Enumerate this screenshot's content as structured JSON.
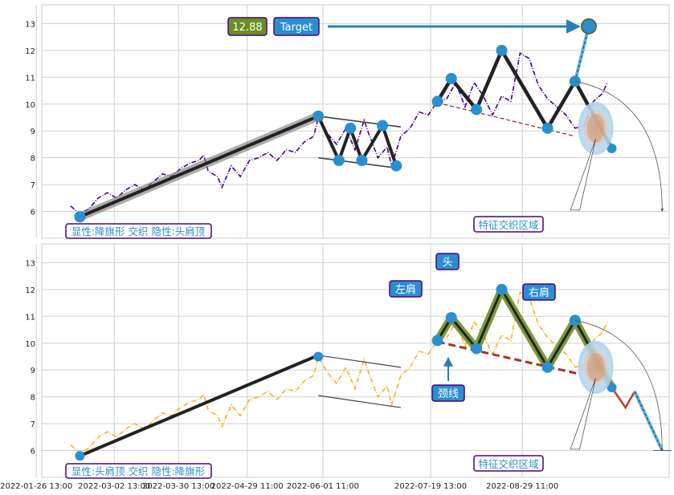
{
  "chart_data": [
    {
      "panel": "top",
      "type": "line",
      "xaxis_dates": [
        "2022-01-26 13:00",
        "2022-03-02 13:00",
        "2022-03-30 13:00",
        "2022-04-29 11:00",
        "2022-06-01 11:00",
        "2022-07-19 13:00",
        "2022-08-29 11:00"
      ],
      "ylim": [
        5,
        13.7
      ],
      "yticks": [
        6,
        7,
        8,
        9,
        10,
        11,
        12,
        13
      ],
      "grid": true,
      "series_color": "#4b0082",
      "price": [
        [
          0,
          6.2
        ],
        [
          4,
          5.9
        ],
        [
          8,
          6.1
        ],
        [
          12,
          6.5
        ],
        [
          16,
          6.7
        ],
        [
          20,
          6.5
        ],
        [
          24,
          6.8
        ],
        [
          28,
          7.0
        ],
        [
          32,
          6.8
        ],
        [
          36,
          7.1
        ],
        [
          40,
          7.4
        ],
        [
          44,
          7.3
        ],
        [
          48,
          7.6
        ],
        [
          52,
          7.8
        ],
        [
          56,
          7.9
        ],
        [
          58,
          8.1
        ],
        [
          60,
          7.5
        ],
        [
          64,
          7.3
        ],
        [
          66,
          6.9
        ],
        [
          70,
          7.7
        ],
        [
          74,
          7.3
        ],
        [
          78,
          7.9
        ],
        [
          82,
          8.0
        ],
        [
          86,
          8.2
        ],
        [
          90,
          7.9
        ],
        [
          94,
          8.3
        ],
        [
          98,
          8.2
        ],
        [
          102,
          8.6
        ],
        [
          106,
          8.8
        ],
        [
          108,
          9.5
        ],
        [
          112,
          8.9
        ],
        [
          116,
          8.5
        ],
        [
          120,
          9.1
        ],
        [
          124,
          8.3
        ],
        [
          128,
          9.4
        ],
        [
          130,
          8.9
        ],
        [
          134,
          8.0
        ],
        [
          138,
          8.4
        ],
        [
          140,
          7.7
        ],
        [
          144,
          8.8
        ],
        [
          148,
          9.1
        ],
        [
          152,
          9.7
        ],
        [
          156,
          9.6
        ],
        [
          160,
          10.1
        ],
        [
          164,
          10.2
        ],
        [
          168,
          10.8
        ],
        [
          172,
          9.9
        ],
        [
          176,
          10.8
        ],
        [
          180,
          10.3
        ],
        [
          184,
          9.6
        ],
        [
          188,
          10.3
        ],
        [
          192,
          10.1
        ],
        [
          196,
          11.9
        ],
        [
          200,
          11.7
        ],
        [
          204,
          10.7
        ],
        [
          208,
          10.2
        ],
        [
          212,
          9.9
        ],
        [
          216,
          9.6
        ],
        [
          220,
          9.1
        ],
        [
          224,
          9.2
        ],
        [
          228,
          10.1
        ],
        [
          232,
          10.4
        ],
        [
          234,
          10.8
        ]
      ],
      "patterns": [
        {
          "name": "降旗形",
          "points": [
            [
              4,
              5.8
            ],
            [
              108,
              9.55
            ]
          ],
          "upper": [
            [
              108,
              9.55
            ],
            [
              144,
              9.15
            ]
          ],
          "lower": [
            [
              108,
              8.0
            ],
            [
              144,
              7.6
            ]
          ]
        },
        {
          "name": "zigzag",
          "points": [
            [
              108,
              9.55
            ],
            [
              117,
              7.9
            ],
            [
              122,
              9.1
            ],
            [
              127,
              7.9
            ],
            [
              136,
              9.2
            ],
            [
              142,
              7.7
            ]
          ]
        },
        {
          "name": "头肩顶",
          "points": [
            [
              160,
              10.1
            ],
            [
              166,
              10.95
            ],
            [
              177,
              9.8
            ],
            [
              188,
              12.0
            ],
            [
              208,
              9.1
            ],
            [
              220,
              10.85
            ],
            [
              236,
              8.35
            ]
          ]
        }
      ],
      "neckline": [
        [
          160,
          10.05
        ],
        [
          220,
          8.8
        ]
      ],
      "target_value": 12.88,
      "target_point": [
        226,
        12.9
      ],
      "zone_label": "特征交织区域",
      "labels": {
        "bottom_left": "显性:降旗形 交织 隐性:头肩顶",
        "target_value_label": "12.88",
        "target_label": "Target"
      }
    },
    {
      "panel": "bottom",
      "type": "line",
      "xaxis_dates": [
        "2022-01-26 13:00",
        "2022-03-02 13:00",
        "2022-03-30 13:00",
        "2022-04-29 11:00",
        "2022-06-01 11:00",
        "2022-07-19 13:00",
        "2022-08-29 11:00"
      ],
      "ylim": [
        5,
        13.7
      ],
      "yticks": [
        6,
        7,
        8,
        9,
        10,
        11,
        12,
        13
      ],
      "grid": true,
      "series_color": "#f0b429",
      "labels": {
        "bottom_left": "显性:头肩顶 交织 隐性:降旗形",
        "head": "头",
        "left_shoulder": "左肩",
        "right_shoulder": "右肩",
        "neckline": "颈线",
        "zone_label": "特征交织区域"
      }
    }
  ]
}
